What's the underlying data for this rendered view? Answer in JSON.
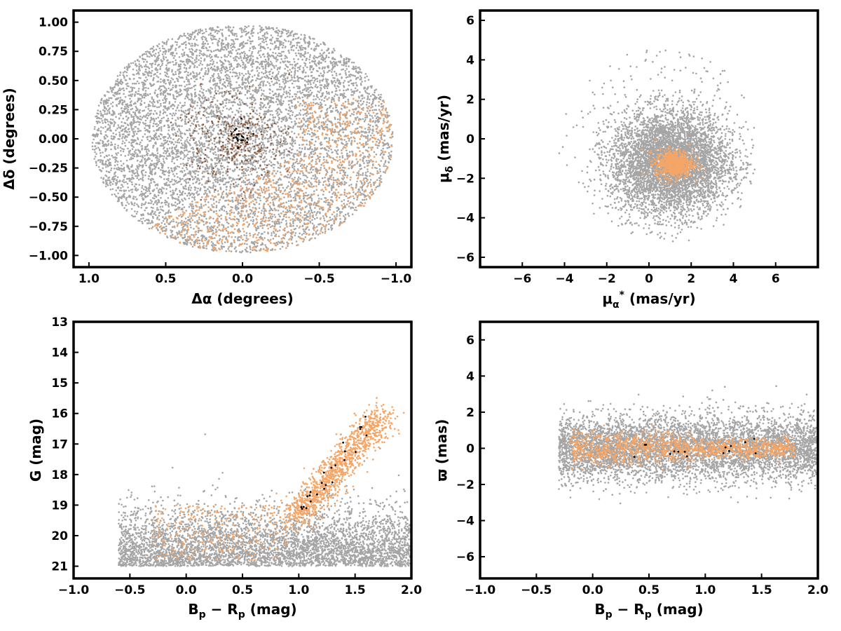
{
  "colors": {
    "field": "#a5a5a5",
    "members": "#f5a566",
    "members_brown": "#8b5a3a",
    "core": "#000000"
  },
  "chart_data": [
    {
      "type": "scatter",
      "panel": "top-left",
      "xlabel": "Δα (degrees)",
      "ylabel": "Δδ (degrees)",
      "xlim": [
        1.1,
        -1.1
      ],
      "ylim": [
        -1.1,
        1.1
      ],
      "x_inverted": true,
      "xticks": [
        1.0,
        0.5,
        0.0,
        -0.5,
        -1.0
      ],
      "xtick_labels": [
        "1.0",
        "0.5",
        "0.0",
        "−0.5",
        "−1.0"
      ],
      "yticks": [
        -1.0,
        -0.75,
        -0.5,
        -0.25,
        0.0,
        0.25,
        0.5,
        0.75,
        1.0
      ],
      "ytick_labels": [
        "−1.00",
        "−0.75",
        "−0.50",
        "−0.25",
        "0.00",
        "0.25",
        "0.50",
        "0.75",
        "1.00"
      ],
      "series": [
        {
          "role": "field",
          "color": "#a5a5a5",
          "description_shape": "disk radius 1.0 deg",
          "approx_points": 9000
        },
        {
          "role": "members_orange",
          "color": "#f5a566",
          "region": "south-west arc, dec −1.0 to 0.3",
          "approx_points": 2200
        },
        {
          "role": "members_brown",
          "color": "#8b5a3a",
          "region": "center, dec −0.4 to 0.4",
          "approx_points": 250
        },
        {
          "role": "core",
          "color": "#000000",
          "center": [
            0.02,
            0.02
          ],
          "approx_points": 20
        }
      ]
    },
    {
      "type": "scatter",
      "panel": "top-right",
      "xlabel": "μα* (mas/yr)",
      "ylabel": "μδ (mas/yr)",
      "xlim": [
        -8,
        8
      ],
      "ylim": [
        -6.5,
        6.5
      ],
      "xticks": [
        -6,
        -4,
        -2,
        0,
        2,
        4,
        6
      ],
      "xtick_labels": [
        "−6",
        "−4",
        "−2",
        "0",
        "2",
        "4",
        "6"
      ],
      "yticks": [
        -6,
        -4,
        -2,
        0,
        2,
        4,
        6
      ],
      "ytick_labels": [
        "−6",
        "−4",
        "−2",
        "0",
        "2",
        "4",
        "6"
      ],
      "series": [
        {
          "role": "field",
          "color": "#a5a5a5",
          "center": [
            1.0,
            -1.2
          ],
          "radius": 4.0,
          "approx_points": 6000
        },
        {
          "role": "members",
          "color": "#f5a566",
          "center": [
            1.2,
            -1.25
          ],
          "spread": [
            0.45,
            0.35
          ],
          "approx_points": 700
        }
      ]
    },
    {
      "type": "scatter",
      "panel": "bottom-left",
      "xlabel": "Bp − Rp (mag)",
      "ylabel": "G (mag)",
      "xlim": [
        -1.0,
        2.0
      ],
      "ylim": [
        21.4,
        13.0
      ],
      "y_inverted": true,
      "xticks": [
        -1.0,
        -0.5,
        0.0,
        0.5,
        1.0,
        1.5,
        2.0
      ],
      "xtick_labels": [
        "−1.0",
        "−0.5",
        "0.0",
        "0.5",
        "1.0",
        "1.5",
        "2.0"
      ],
      "yticks": [
        13,
        14,
        15,
        16,
        17,
        18,
        19,
        20,
        21
      ],
      "ytick_labels": [
        "13",
        "14",
        "15",
        "16",
        "17",
        "18",
        "19",
        "20",
        "21"
      ],
      "series": [
        {
          "role": "field",
          "color": "#a5a5a5",
          "approx_points": 4500
        },
        {
          "role": "members",
          "color": "#f5a566",
          "sequence": "G 19.5 at 0.95 to G 16.0 at 1.75",
          "approx_points": 1200
        },
        {
          "role": "core",
          "color": "#000000",
          "approx_points": 25
        }
      ]
    },
    {
      "type": "scatter",
      "panel": "bottom-right",
      "xlabel": "Bp − Rp (mag)",
      "ylabel": "ϖ (mas)",
      "xlim": [
        -1.0,
        2.0
      ],
      "ylim": [
        -7.2,
        7.0
      ],
      "xticks": [
        -1.0,
        -0.5,
        0.0,
        0.5,
        1.0,
        1.5,
        2.0
      ],
      "xtick_labels": [
        "−1.0",
        "−0.5",
        "0.0",
        "0.5",
        "1.0",
        "1.5",
        "2.0"
      ],
      "yticks": [
        -6,
        -4,
        -2,
        0,
        2,
        4,
        6
      ],
      "ytick_labels": [
        "−6",
        "−4",
        "−2",
        "0",
        "2",
        "4",
        "6"
      ],
      "series": [
        {
          "role": "field",
          "color": "#a5a5a5",
          "center_y": 0.0,
          "approx_points": 5500
        },
        {
          "role": "members",
          "color": "#f5a566",
          "center_y": 0.0,
          "approx_points": 1200
        },
        {
          "role": "core",
          "color": "#000000",
          "approx_points": 15
        }
      ]
    }
  ]
}
